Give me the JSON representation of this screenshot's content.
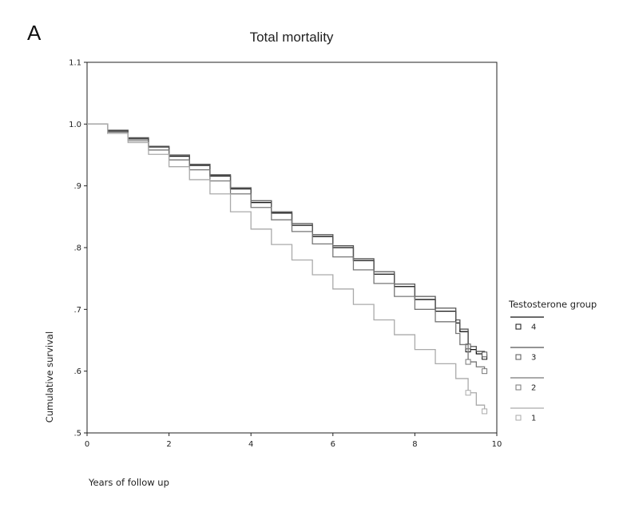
{
  "panel_label": "A",
  "chart_data": {
    "type": "line",
    "title": "Total mortality",
    "xlabel": "Years of follow up",
    "ylabel": "Cumulative survival",
    "xlim": [
      0,
      10
    ],
    "ylim": [
      0.5,
      1.1
    ],
    "xticks": [
      0,
      2,
      4,
      6,
      8,
      10
    ],
    "xtick_labels": [
      "0",
      "2",
      "4",
      "6",
      "8",
      "10"
    ],
    "yticks": [
      0.5,
      0.6,
      0.7,
      0.8,
      0.9,
      1.0,
      1.1
    ],
    "ytick_labels": [
      ".5",
      ".6",
      ".7",
      ".8",
      ".9",
      "1.0",
      "1.1"
    ],
    "grid": false,
    "legend": {
      "title": "Testosterone group",
      "placement": "right"
    },
    "series": [
      {
        "name": "4",
        "color": "#111111",
        "censor_marker": "square",
        "x": [
          0,
          0.5,
          1,
          1.5,
          2,
          2.5,
          3,
          3.5,
          4,
          4.5,
          5,
          5.5,
          6,
          6.5,
          7,
          7.5,
          8,
          8.5,
          9,
          9.1,
          9.3,
          9.5,
          9.7
        ],
        "y": [
          1.0,
          0.989,
          0.976,
          0.963,
          0.948,
          0.933,
          0.916,
          0.895,
          0.873,
          0.856,
          0.836,
          0.818,
          0.8,
          0.779,
          0.757,
          0.737,
          0.716,
          0.697,
          0.678,
          0.664,
          0.635,
          0.628,
          0.623
        ]
      },
      {
        "name": "3",
        "color": "#555555",
        "censor_marker": "square",
        "x": [
          0,
          0.5,
          1,
          1.5,
          2,
          2.5,
          3,
          3.5,
          4,
          4.5,
          5,
          5.5,
          6,
          6.5,
          7,
          7.5,
          8,
          8.5,
          9,
          9.1,
          9.3,
          9.5,
          9.7
        ],
        "y": [
          1.0,
          0.99,
          0.978,
          0.964,
          0.95,
          0.935,
          0.918,
          0.897,
          0.876,
          0.858,
          0.839,
          0.821,
          0.803,
          0.782,
          0.761,
          0.741,
          0.721,
          0.702,
          0.683,
          0.668,
          0.64,
          0.632,
          0.627
        ]
      },
      {
        "name": "2",
        "color": "#777777",
        "censor_marker": "square",
        "x": [
          0,
          0.5,
          1,
          1.5,
          2,
          2.5,
          3,
          3.5,
          4,
          4.5,
          5,
          5.5,
          6,
          6.5,
          7,
          7.5,
          8,
          8.5,
          9,
          9.1,
          9.3,
          9.5,
          9.7
        ],
        "y": [
          1.0,
          0.987,
          0.973,
          0.958,
          0.942,
          0.926,
          0.908,
          0.887,
          0.865,
          0.845,
          0.826,
          0.806,
          0.785,
          0.764,
          0.742,
          0.721,
          0.7,
          0.68,
          0.661,
          0.643,
          0.615,
          0.607,
          0.6
        ]
      },
      {
        "name": "1",
        "color": "#aaaaaa",
        "censor_marker": "square",
        "x": [
          0,
          0.5,
          1,
          1.5,
          2,
          2.5,
          3,
          3.5,
          4,
          4.5,
          5,
          5.5,
          6,
          6.5,
          7,
          7.5,
          8,
          8.5,
          9,
          9.3,
          9.5,
          9.7
        ],
        "y": [
          1.0,
          0.985,
          0.97,
          0.951,
          0.931,
          0.91,
          0.887,
          0.858,
          0.83,
          0.805,
          0.78,
          0.756,
          0.733,
          0.708,
          0.683,
          0.659,
          0.635,
          0.612,
          0.588,
          0.565,
          0.545,
          0.535
        ]
      }
    ]
  }
}
